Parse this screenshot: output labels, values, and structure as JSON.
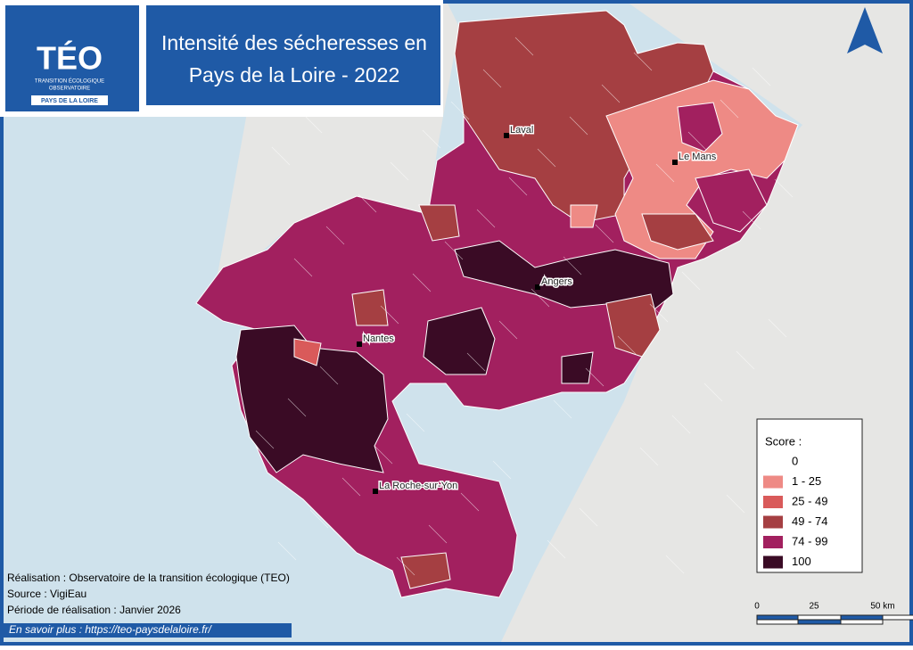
{
  "logo": {
    "name": "TÉO",
    "line1": "TRANSITION ÉCOLOGIQUE",
    "line2": "OBSERVATOIRE",
    "region": "PAYS DE LA LOIRE"
  },
  "title": [
    "Intensité des sécheresses en",
    "Pays de la Loire - 2022"
  ],
  "cities": [
    "Laval",
    "Le Mans",
    "Angers",
    "Nantes",
    "La Roche-sur-Yon"
  ],
  "legend": {
    "title": "Score :",
    "classes": [
      {
        "label": "0",
        "color": "#ffffff"
      },
      {
        "label": "1 - 25",
        "color": "#ee8a85"
      },
      {
        "label": "25 - 49",
        "color": "#d95a5a"
      },
      {
        "label": "49 - 74",
        "color": "#a53f42"
      },
      {
        "label": "74 - 99",
        "color": "#a2205f"
      },
      {
        "label": "100",
        "color": "#3a0b25"
      }
    ]
  },
  "scale_bar": [
    "0",
    "25",
    "50 km"
  ],
  "credits": [
    "Réalisation : Observatoire de la transition écologique (TEO)",
    "Source : VigiEau",
    "Période de réalisation : Janvier 2026"
  ],
  "link": "En savoir plus : https://teo-paysdelaloire.fr/"
}
